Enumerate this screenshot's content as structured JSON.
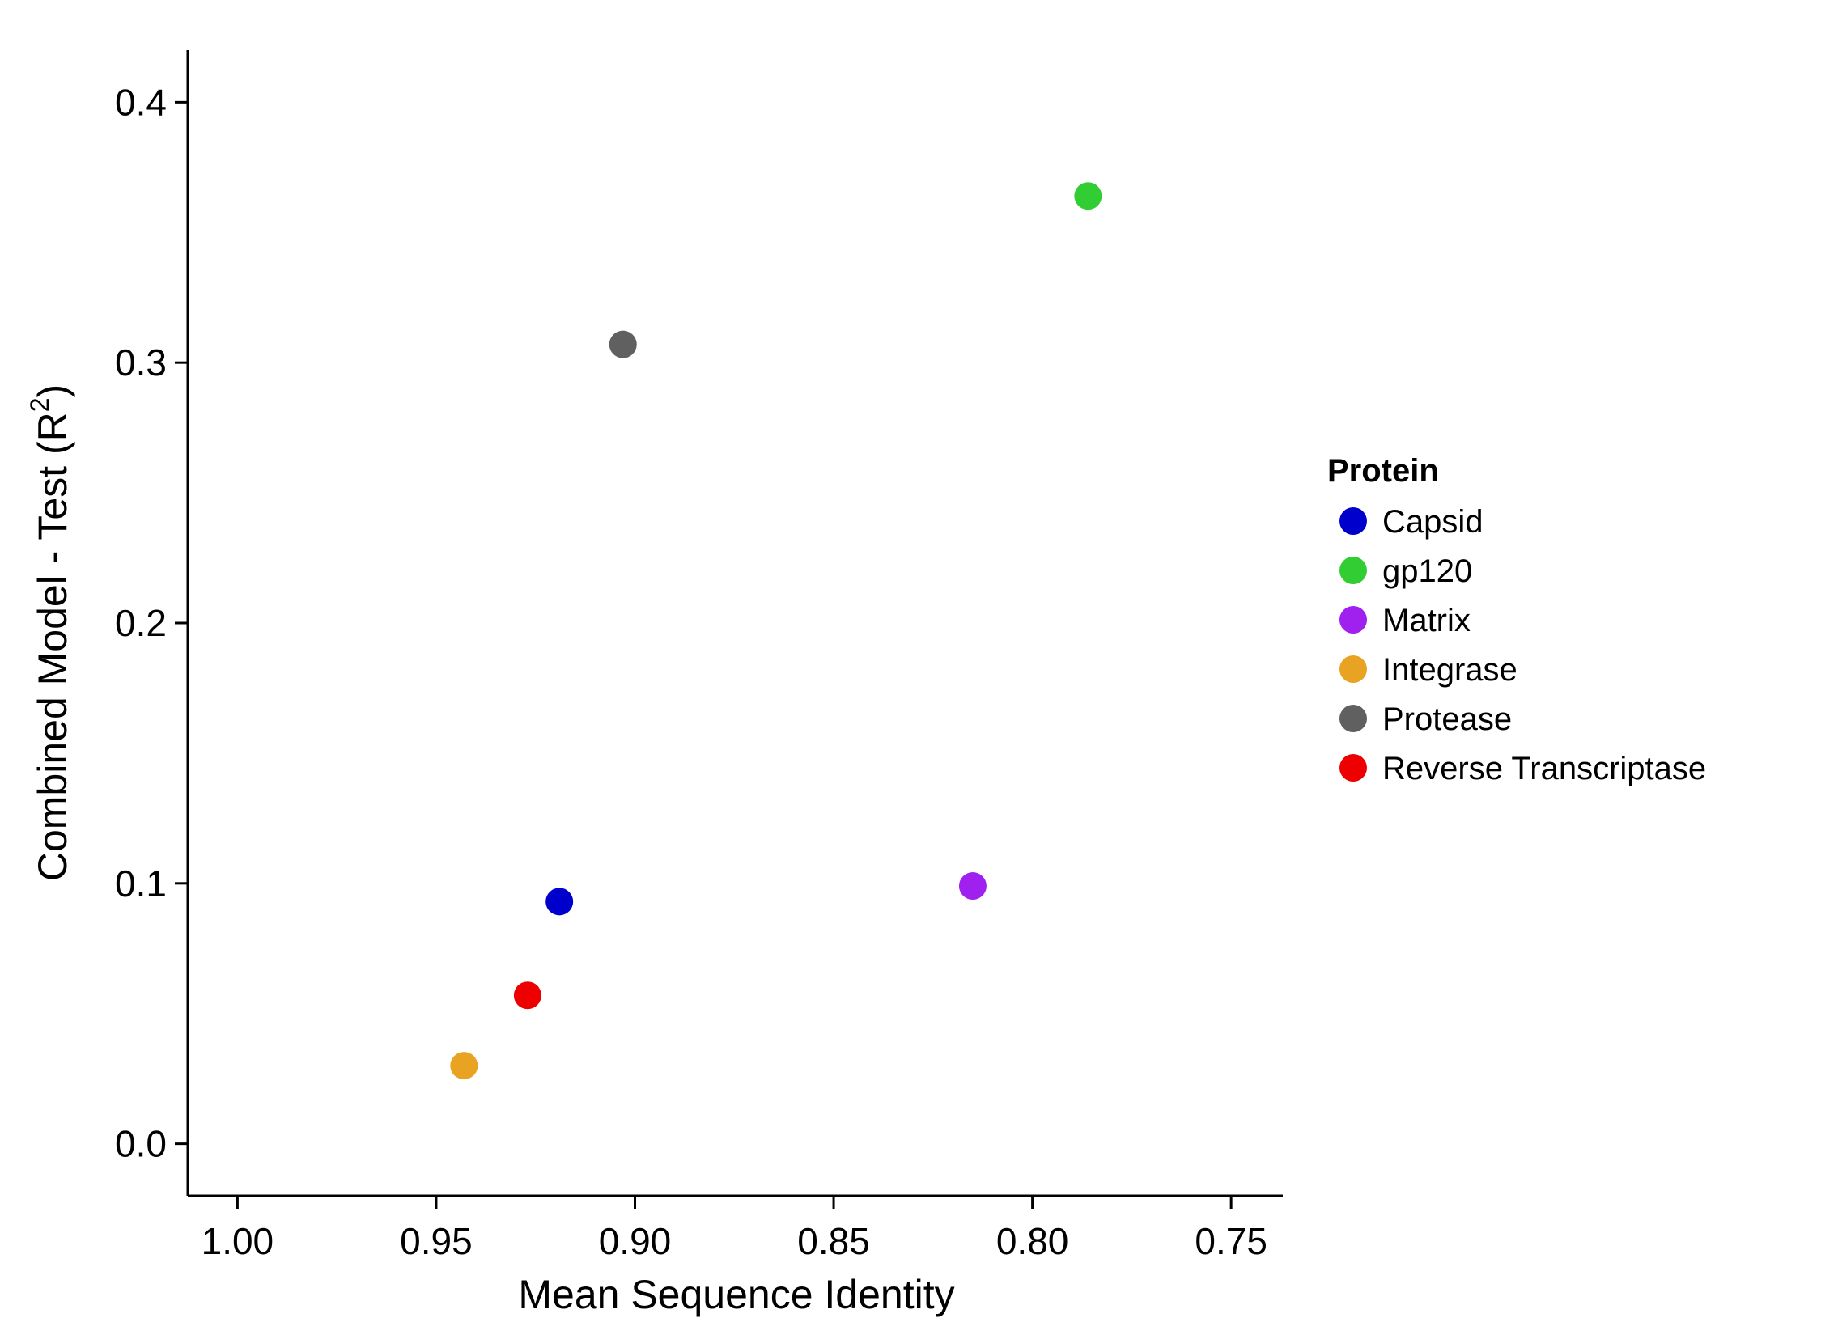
{
  "chart_data": {
    "type": "scatter",
    "xlabel": "Mean Sequence Identity",
    "ylabel_main": "Combined Model - Test (R",
    "ylabel_sup": "2",
    "ylabel_end": ")",
    "x_reversed": true,
    "xlim": [
      1.0125,
      0.737
    ],
    "ylim": [
      -0.02,
      0.42
    ],
    "x_ticks": [
      1.0,
      0.95,
      0.9,
      0.85,
      0.8,
      0.75
    ],
    "x_tick_labels": [
      "1.00",
      "0.95",
      "0.90",
      "0.85",
      "0.80",
      "0.75"
    ],
    "y_ticks": [
      0.0,
      0.1,
      0.2,
      0.3,
      0.4
    ],
    "y_tick_labels": [
      "0.0",
      "0.1",
      "0.2",
      "0.3",
      "0.4"
    ],
    "grid": false,
    "legend": {
      "title": "Protein",
      "placement": "right",
      "items": [
        {
          "label": "Capsid",
          "color": "#0000CD"
        },
        {
          "label": "gp120",
          "color": "#32CD32"
        },
        {
          "label": "Matrix",
          "color": "#A020F0"
        },
        {
          "label": "Integrase",
          "color": "#E8A323"
        },
        {
          "label": "Protease",
          "color": "#606060"
        },
        {
          "label": "Reverse Transcriptase",
          "color": "#EE0000"
        }
      ]
    },
    "points": [
      {
        "name": "Capsid",
        "x": 0.919,
        "y": 0.093,
        "color": "#0000CD"
      },
      {
        "name": "gp120",
        "x": 0.786,
        "y": 0.364,
        "color": "#32CD32"
      },
      {
        "name": "Matrix",
        "x": 0.815,
        "y": 0.099,
        "color": "#A020F0"
      },
      {
        "name": "Integrase",
        "x": 0.943,
        "y": 0.03,
        "color": "#E8A323"
      },
      {
        "name": "Protease",
        "x": 0.903,
        "y": 0.307,
        "color": "#606060"
      },
      {
        "name": "Reverse Transcriptase",
        "x": 0.927,
        "y": 0.057,
        "color": "#EE0000"
      }
    ]
  }
}
